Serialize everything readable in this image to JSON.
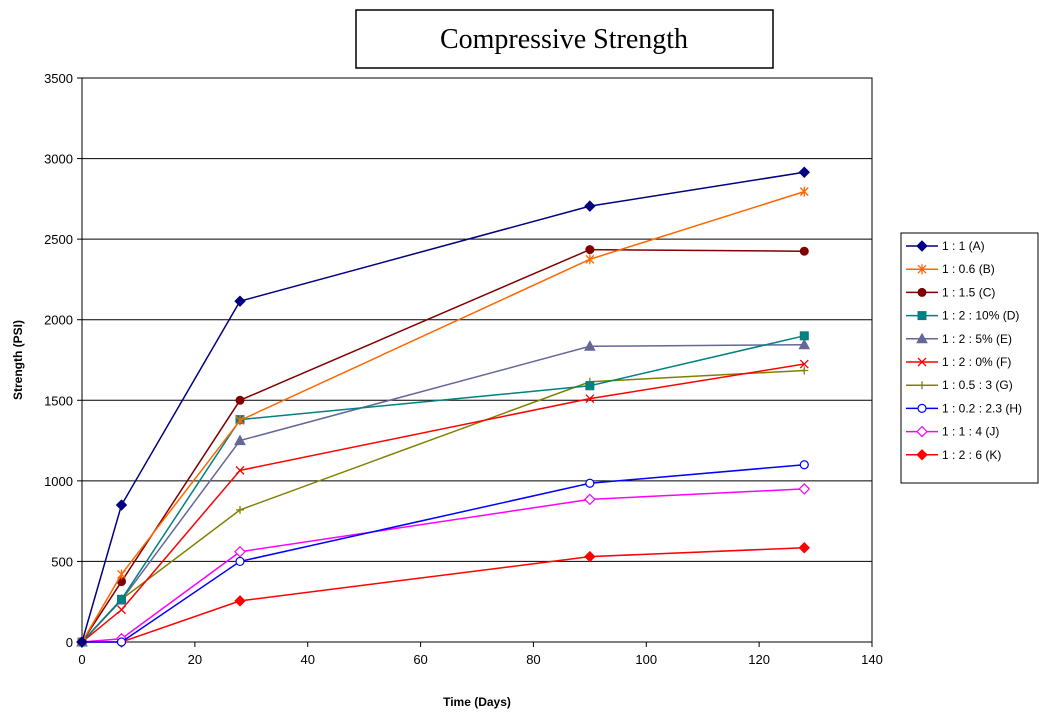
{
  "chart_data": {
    "type": "line",
    "title": "Compressive Strength",
    "xlabel": "Time (Days)",
    "ylabel": "Strength (PSI)",
    "xlim": [
      0,
      140
    ],
    "ylim": [
      0,
      3500
    ],
    "xticks": [
      0,
      20,
      40,
      60,
      80,
      100,
      120,
      140
    ],
    "yticks": [
      0,
      500,
      1000,
      1500,
      2000,
      2500,
      3000,
      3500
    ],
    "grid": "horizontal",
    "legend_position": "right",
    "series": [
      {
        "name": "1 : 1 (A)",
        "color": "#000080",
        "marker": "diamond",
        "x": [
          0,
          7,
          28,
          90,
          128
        ],
        "y": [
          0,
          850,
          2115,
          2705,
          2915
        ]
      },
      {
        "name": "1 : 0.6 (B)",
        "color": "#FF6600",
        "marker": "asterisk",
        "x": [
          0,
          7,
          28,
          90,
          128
        ],
        "y": [
          0,
          420,
          1375,
          2375,
          2795
        ]
      },
      {
        "name": "1 : 1.5 (C)",
        "color": "#800000",
        "marker": "circle-filled",
        "x": [
          0,
          7,
          28,
          90,
          128
        ],
        "y": [
          0,
          375,
          1500,
          2435,
          2425
        ]
      },
      {
        "name": "1 : 2 : 10% (D)",
        "color": "#008080",
        "marker": "square",
        "x": [
          0,
          7,
          28,
          90,
          128
        ],
        "y": [
          0,
          265,
          1380,
          1590,
          1900
        ]
      },
      {
        "name": "1 : 2 : 5% (E)",
        "color": "#666699",
        "marker": "triangle",
        "x": [
          0,
          7,
          28,
          90,
          128
        ],
        "y": [
          0,
          260,
          1250,
          1835,
          1845
        ]
      },
      {
        "name": "1 : 2 : 0% (F)",
        "color": "#FF0000",
        "marker": "x",
        "x": [
          0,
          7,
          28,
          90,
          128
        ],
        "y": [
          0,
          200,
          1065,
          1510,
          1725
        ]
      },
      {
        "name": "1 : 0.5 : 3 (G)",
        "color": "#808000",
        "marker": "plus",
        "x": [
          0,
          7,
          28,
          90,
          128
        ],
        "y": [
          0,
          265,
          820,
          1615,
          1685
        ]
      },
      {
        "name": "1 : 0.2 : 2.3 (H)",
        "color": "#0000FF",
        "marker": "circle-open",
        "x": [
          0,
          7,
          28,
          90,
          128
        ],
        "y": [
          0,
          0,
          500,
          985,
          1100
        ]
      },
      {
        "name": "1 : 1 : 4 (J)",
        "color": "#FF00FF",
        "marker": "diamond-open",
        "x": [
          0,
          7,
          28,
          90,
          128
        ],
        "y": [
          0,
          20,
          560,
          885,
          950
        ]
      },
      {
        "name": "1 : 2 : 6 (K)",
        "color": "#FF0000",
        "marker": "diamond",
        "x": [
          0,
          7,
          28,
          90,
          128
        ],
        "y": [
          0,
          0,
          255,
          530,
          585
        ]
      }
    ]
  }
}
